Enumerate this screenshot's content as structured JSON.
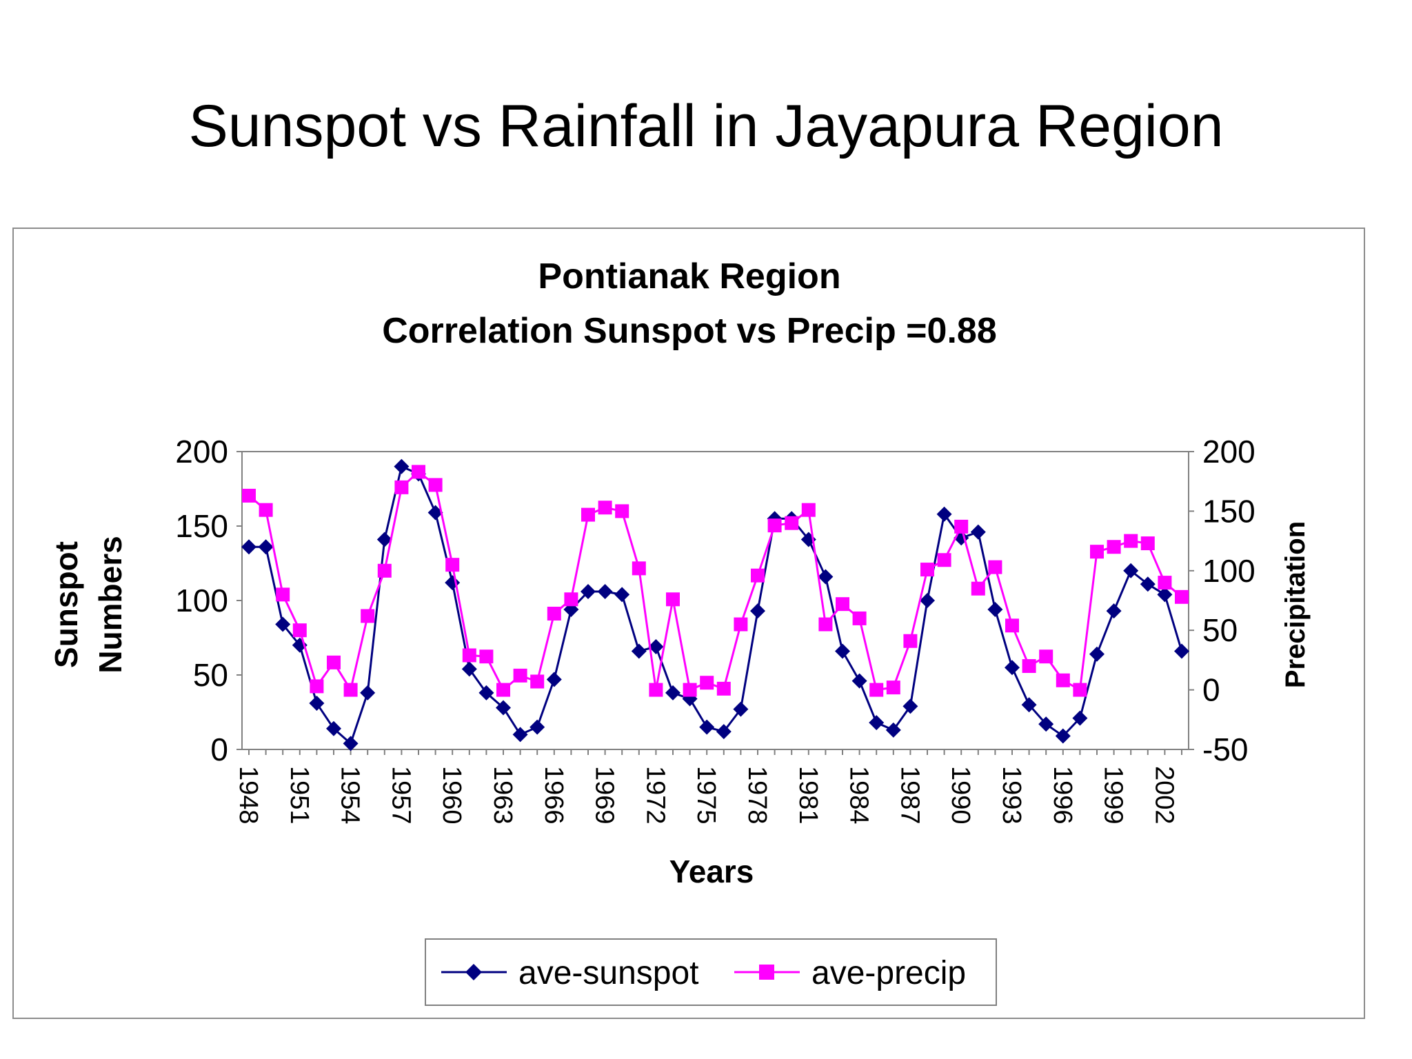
{
  "slide_title": "Sunspot vs Rainfall in Jayapura Region",
  "chart_data": {
    "type": "line",
    "title": "Pontianak Region",
    "subtitle": "Correlation Sunspot vs Precip =0.88",
    "xlabel": "Years",
    "ylabel": "Sunspot\nNumbers",
    "y2label": "Precipitation",
    "ylim": [
      0,
      200
    ],
    "y2lim": [
      -50,
      200
    ],
    "yticks": [
      0,
      50,
      100,
      150,
      200
    ],
    "y2ticks": [
      -50,
      0,
      50,
      100,
      150,
      200
    ],
    "x": [
      1948,
      1949,
      1950,
      1951,
      1952,
      1953,
      1954,
      1955,
      1956,
      1957,
      1958,
      1959,
      1960,
      1961,
      1962,
      1963,
      1964,
      1965,
      1966,
      1967,
      1968,
      1969,
      1970,
      1971,
      1972,
      1973,
      1974,
      1975,
      1976,
      1977,
      1978,
      1979,
      1980,
      1981,
      1982,
      1983,
      1984,
      1985,
      1986,
      1987,
      1988,
      1989,
      1990,
      1991,
      1992,
      1993,
      1994,
      1995,
      1996,
      1997,
      1998,
      1999,
      2000,
      2001,
      2002,
      2003
    ],
    "xtick_labels": [
      "1948",
      "1951",
      "1954",
      "1957",
      "1960",
      "1963",
      "1966",
      "1969",
      "1972",
      "1975",
      "1978",
      "1981",
      "1984",
      "1987",
      "1990",
      "1993",
      "1996",
      "1999",
      "2002"
    ],
    "legend_position": "bottom",
    "series": [
      {
        "name": "ave-sunspot",
        "axis": "left",
        "color": "#000080",
        "marker": "diamond",
        "values": [
          136,
          136,
          84,
          70,
          31,
          14,
          4,
          38,
          141,
          190,
          185,
          159,
          112,
          54,
          38,
          28,
          10,
          15,
          47,
          94,
          106,
          106,
          104,
          66,
          69,
          38,
          34,
          15,
          12,
          27,
          93,
          155,
          155,
          141,
          116,
          66,
          46,
          18,
          13,
          29,
          100,
          158,
          142,
          146,
          94,
          55,
          30,
          17,
          9,
          21,
          64,
          93,
          120,
          111,
          104,
          66
        ]
      },
      {
        "name": "ave-precip",
        "axis": "right",
        "color": "#ff00ff",
        "marker": "square",
        "values": [
          163,
          151,
          80,
          50,
          3,
          23,
          0,
          62,
          100,
          170,
          183,
          172,
          105,
          29,
          28,
          0,
          12,
          7,
          64,
          76,
          147,
          153,
          150,
          102,
          0,
          76,
          0,
          6,
          1,
          55,
          96,
          138,
          140,
          151,
          55,
          72,
          60,
          0,
          2,
          41,
          101,
          109,
          137,
          85,
          103,
          54,
          20,
          28,
          8,
          0,
          116,
          120,
          125,
          123,
          90,
          78
        ]
      }
    ]
  }
}
